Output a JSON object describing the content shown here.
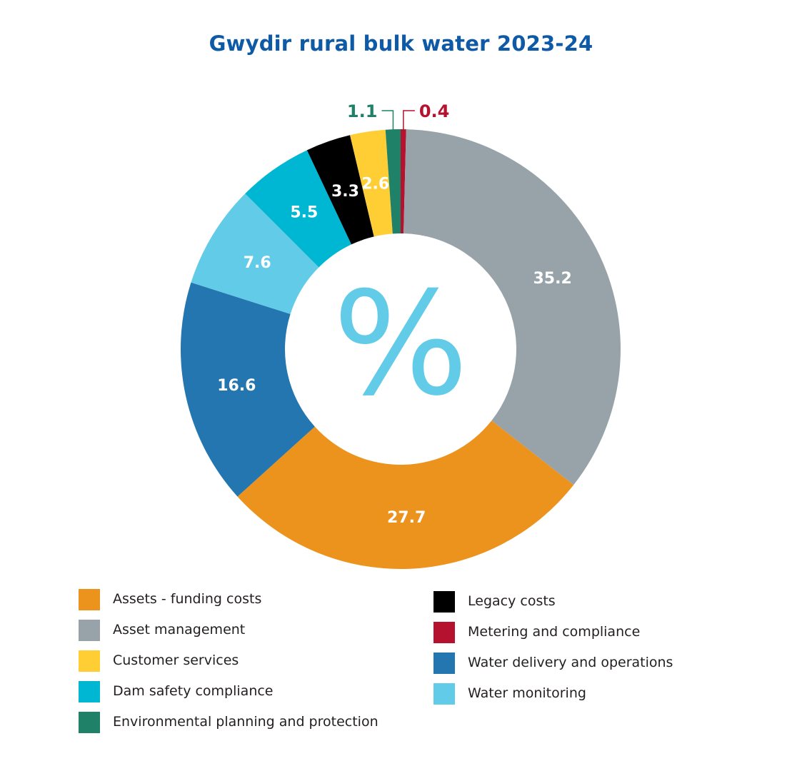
{
  "chart_data": {
    "type": "pie",
    "title": "Gwydir rural bulk water 2023-24",
    "unit_symbol": "%",
    "donut": true,
    "slices": [
      {
        "label": "Metering and compliance",
        "value": 0.4,
        "color": "#b5122f"
      },
      {
        "label": "Asset management",
        "value": 35.2,
        "color": "#97a3a9"
      },
      {
        "label": "Assets - funding costs",
        "value": 27.7,
        "color": "#ec931d"
      },
      {
        "label": "Water delivery and operations",
        "value": 16.6,
        "color": "#2376b0"
      },
      {
        "label": "Water monitoring",
        "value": 7.6,
        "color": "#61cbe8"
      },
      {
        "label": "Dam safety compliance",
        "value": 5.5,
        "color": "#00b7d3"
      },
      {
        "label": "Legacy costs",
        "value": 3.3,
        "color": "#000000"
      },
      {
        "label": "Customer services",
        "value": 2.6,
        "color": "#ffcd34"
      },
      {
        "label": "Environmental planning and protection",
        "value": 1.1,
        "color": "#1f8268"
      }
    ],
    "data_labels": {
      "Metering and compliance": "0.4",
      "Asset management": "35.2",
      "Assets - funding costs": "27.7",
      "Water delivery and operations": "16.6",
      "Water monitoring": "7.6",
      "Dam safety compliance": "5.5",
      "Legacy costs": "3.3",
      "Customer services": "2.6",
      "Environmental planning and protection": "1.1"
    },
    "legend": {
      "placement": "bottom",
      "column_1": [
        {
          "label": "Assets - funding costs",
          "color": "#ec931d"
        },
        {
          "label": "Asset management",
          "color": "#97a3a9"
        },
        {
          "label": "Customer services",
          "color": "#ffcd34"
        },
        {
          "label": "Dam safety compliance",
          "color": "#00b7d3"
        },
        {
          "label": "Environmental planning and protection",
          "color": "#1f8268"
        }
      ],
      "column_2": [
        {
          "label": "Legacy costs",
          "color": "#000000"
        },
        {
          "label": "Metering and compliance",
          "color": "#b5122f"
        },
        {
          "label": "Water delivery and operations",
          "color": "#2376b0"
        },
        {
          "label": "Water monitoring",
          "color": "#61cbe8"
        }
      ]
    }
  },
  "colors": {
    "title": "#0f5aa6",
    "percent_symbol": "#61cbe8",
    "inside_label": "#ffffff",
    "leader_environmental": "#1f8268",
    "leader_metering": "#b5122f"
  },
  "icons": {
    "center": "percent-symbol-icon"
  }
}
